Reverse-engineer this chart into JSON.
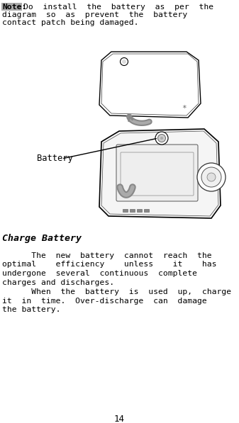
{
  "background_color": "#ffffff",
  "page_number": "14",
  "note_label": "Note:",
  "section_title": "Charge Battery",
  "note_line1": "Do  install  the  battery  as  per  the",
  "note_line2": "diagram  so  as  prevent  the  battery",
  "note_line3": "contact patch being damaged.",
  "para1_line1": "      The  new  battery  cannot  reach  the",
  "para1_line2": "optimal    efficiency    unless    it    has",
  "para1_line3": "undergone  several  continuous  complete",
  "para1_line4": "charges and discharges.",
  "para2_line1": "      When  the  battery  is  used  up,  charge",
  "para2_line2": "it  in  time.  Over-discharge  can  damage",
  "para2_line3": "the battery.",
  "battery_label": "Battery",
  "text_color": "#000000",
  "note_fontsize": 8.2,
  "title_fontsize": 9.5,
  "body_fontsize": 8.2,
  "page_num_fontsize": 9,
  "note_label_bg": "#aaaaaa"
}
